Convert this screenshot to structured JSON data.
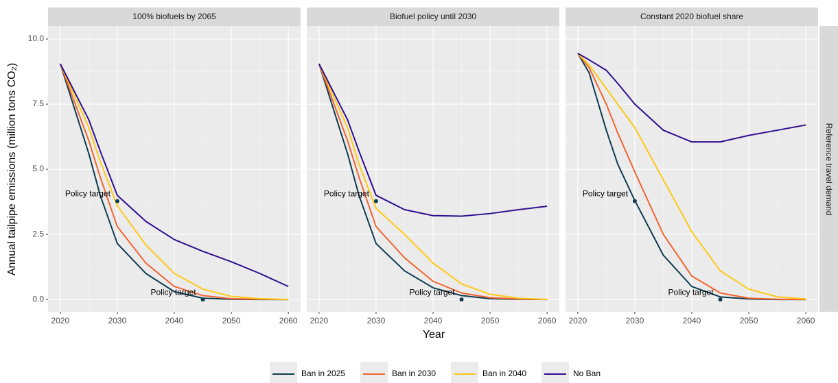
{
  "chart_data": {
    "type": "line",
    "xlabel": "Year",
    "ylabel": "Annual tailpipe emissions (million tons CO₂)",
    "strip": "Reference travel demand",
    "xlim": [
      2017.85,
      2062.15
    ],
    "ylim": [
      -0.47,
      10.5
    ],
    "xticks": [
      2020,
      2030,
      2040,
      2050,
      2060
    ],
    "yticks": [
      {
        "value": 0,
        "label": "0.0"
      },
      {
        "value": 2.5,
        "label": "2.5"
      },
      {
        "value": 5,
        "label": "5.0"
      },
      {
        "value": 7.5,
        "label": "7.5"
      },
      {
        "value": 10,
        "label": "10.0"
      }
    ],
    "grid": true,
    "legend": "bottom",
    "facets": [
      {
        "title": "100% biofuels by 2065",
        "x": [
          2020,
          2025,
          2027,
          2030,
          2035,
          2040,
          2045,
          2050,
          2055,
          2060
        ],
        "series": [
          {
            "name": "Ban in 2025",
            "color": "#0d3b4f",
            "values": [
              9.05,
              5.6,
              4.0,
              2.15,
              1.0,
              0.3,
              0.05,
              0.01,
              0,
              0
            ]
          },
          {
            "name": "Ban in 2030",
            "color": "#f26430",
            "values": [
              9.05,
              6.1,
              4.7,
              2.8,
              1.4,
              0.5,
              0.15,
              0.03,
              0.01,
              0
            ]
          },
          {
            "name": "Ban in 2040",
            "color": "#ffc914",
            "values": [
              9.05,
              6.6,
              5.3,
              3.6,
              2.1,
              1.0,
              0.4,
              0.12,
              0.03,
              0
            ]
          },
          {
            "name": "No Ban",
            "color": "#2e0e8f",
            "values": [
              9.05,
              6.9,
              5.7,
              4.0,
              3.0,
              2.3,
              1.85,
              1.45,
              1.0,
              0.5
            ]
          }
        ],
        "targets": {
          "x": [
            2030,
            2045
          ],
          "values": [
            3.78,
            0
          ],
          "labels": [
            "Policy target",
            "Policy target"
          ]
        }
      },
      {
        "title": "Biofuel policy until 2030",
        "x": [
          2020,
          2025,
          2027,
          2030,
          2035,
          2040,
          2045,
          2050,
          2055,
          2060
        ],
        "series": [
          {
            "name": "Ban in 2025",
            "color": "#0d3b4f",
            "values": [
              9.05,
              5.6,
              4.0,
              2.15,
              1.1,
              0.45,
              0.15,
              0.03,
              0.01,
              0
            ]
          },
          {
            "name": "Ban in 2030",
            "color": "#f26430",
            "values": [
              9.05,
              6.1,
              4.7,
              2.8,
              1.6,
              0.7,
              0.25,
              0.07,
              0.02,
              0
            ]
          },
          {
            "name": "Ban in 2040",
            "color": "#ffc914",
            "values": [
              9.05,
              6.6,
              5.2,
              3.5,
              2.5,
              1.4,
              0.6,
              0.2,
              0.05,
              0
            ]
          },
          {
            "name": "No Ban",
            "color": "#2e0e8f",
            "values": [
              9.05,
              6.9,
              5.7,
              4.0,
              3.45,
              3.22,
              3.2,
              3.3,
              3.45,
              3.58
            ]
          }
        ],
        "targets": {
          "x": [
            2030,
            2045
          ],
          "values": [
            3.78,
            0
          ],
          "labels": [
            "Policy target",
            "Policy target"
          ]
        }
      },
      {
        "title": "Constant 2020 biofuel share",
        "x": [
          2020,
          2022,
          2025,
          2027,
          2030,
          2035,
          2040,
          2045,
          2050,
          2055,
          2060
        ],
        "series": [
          {
            "name": "Ban in 2025",
            "color": "#0d3b4f",
            "values": [
              9.45,
              8.7,
              6.5,
              5.2,
              3.8,
              1.7,
              0.5,
              0.1,
              0.02,
              0,
              0
            ]
          },
          {
            "name": "Ban in 2030",
            "color": "#f26430",
            "values": [
              9.45,
              8.9,
              7.5,
              6.4,
              4.9,
              2.5,
              0.9,
              0.25,
              0.05,
              0.01,
              0
            ]
          },
          {
            "name": "Ban in 2040",
            "color": "#ffc914",
            "values": [
              9.45,
              9.0,
              8.1,
              7.5,
              6.6,
              4.6,
              2.6,
              1.1,
              0.4,
              0.1,
              0.02
            ]
          },
          {
            "name": "No Ban",
            "color": "#2e0e8f",
            "values": [
              9.45,
              9.2,
              8.8,
              8.3,
              7.5,
              6.5,
              6.05,
              6.05,
              6.3,
              6.5,
              6.7
            ]
          }
        ],
        "targets": {
          "x": [
            2030,
            2045
          ],
          "values": [
            3.78,
            0
          ],
          "labels": [
            "Policy target",
            "Policy target"
          ]
        }
      }
    ]
  }
}
